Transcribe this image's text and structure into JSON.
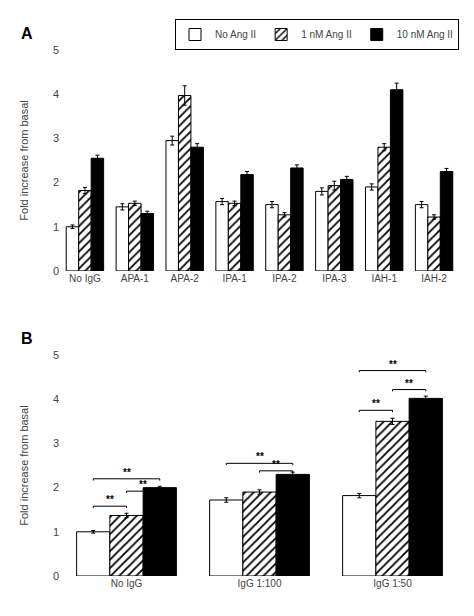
{
  "chart_data": [
    {
      "type": "bar",
      "title": "A",
      "categories": [
        "No IgG",
        "APA-1",
        "APA-2",
        "IPA-1",
        "IPA-2",
        "IPA-3",
        "IAH-1",
        "IAH-2"
      ],
      "series": [
        {
          "name": "No Ang II",
          "color": "#ffffff",
          "values": [
            1.0,
            1.45,
            2.95,
            1.57,
            1.5,
            1.8,
            1.9,
            1.5
          ],
          "errors": [
            0.04,
            0.07,
            0.1,
            0.07,
            0.07,
            0.08,
            0.07,
            0.07
          ]
        },
        {
          "name": "1 nM Ang II",
          "color": "#ffffff",
          "marker": "hatched",
          "values": [
            1.82,
            1.53,
            3.97,
            1.53,
            1.27,
            1.93,
            2.8,
            1.22
          ],
          "errors": [
            0.07,
            0.05,
            0.22,
            0.05,
            0.05,
            0.1,
            0.08,
            0.05
          ]
        },
        {
          "name": "10 nM Ang II",
          "color": "#000000",
          "values": [
            2.55,
            1.3,
            2.8,
            2.18,
            2.33,
            2.07,
            4.1,
            2.25
          ],
          "errors": [
            0.07,
            0.05,
            0.08,
            0.07,
            0.07,
            0.07,
            0.15,
            0.07
          ]
        }
      ],
      "ylabel": "Fold increase from basal",
      "ylim": [
        0,
        5
      ],
      "yticks": [
        0,
        1,
        2,
        3,
        4,
        5
      ],
      "grid": false,
      "legend": "upper right"
    },
    {
      "type": "bar",
      "title": "B",
      "categories": [
        "No IgG",
        "IgG 1:100",
        "IgG 1:50"
      ],
      "series": [
        {
          "name": "No Ang II",
          "color": "#ffffff",
          "values": [
            1.0,
            1.72,
            1.82
          ],
          "errors": [
            0.03,
            0.05,
            0.05
          ]
        },
        {
          "name": "1 nM Ang II",
          "color": "#ffffff",
          "marker": "hatched",
          "values": [
            1.37,
            1.9,
            3.5
          ],
          "errors": [
            0.05,
            0.05,
            0.07
          ]
        },
        {
          "name": "10 nM Ang II",
          "color": "#000000",
          "values": [
            2.0,
            2.3,
            4.02
          ],
          "errors": [
            0.03,
            0.05,
            0.05
          ]
        }
      ],
      "ylabel": "Fold increase from basal",
      "ylim": [
        0,
        5
      ],
      "yticks": [
        0,
        1,
        2,
        3,
        4,
        5
      ],
      "grid": false,
      "legend": "upper right",
      "annotations": [
        {
          "text": "**",
          "category": "No IgG",
          "from": "No Ang II",
          "to": "1 nM Ang II",
          "y": 1.58
        },
        {
          "text": "**",
          "category": "No IgG",
          "from": "1 nM Ang II",
          "to": "10 nM Ang II",
          "y": 1.92
        },
        {
          "text": "**",
          "category": "No IgG",
          "from": "No Ang II",
          "to": "10 nM Ang II",
          "y": 2.2
        },
        {
          "text": "**",
          "category": "IgG 1:100",
          "from": "No Ang II",
          "to": "10 nM Ang II",
          "y": 2.55
        },
        {
          "text": "**",
          "category": "IgG 1:100",
          "from": "1 nM Ang II",
          "to": "10 nM Ang II",
          "y": 2.38
        },
        {
          "text": "**",
          "category": "IgG 1:50",
          "from": "No Ang II",
          "to": "1 nM Ang II",
          "y": 3.75
        },
        {
          "text": "**",
          "category": "IgG 1:50",
          "from": "1 nM Ang II",
          "to": "10 nM Ang II",
          "y": 4.22
        },
        {
          "text": "**",
          "category": "IgG 1:50",
          "from": "No Ang II",
          "to": "10 nM Ang II",
          "y": 4.65
        }
      ]
    }
  ]
}
